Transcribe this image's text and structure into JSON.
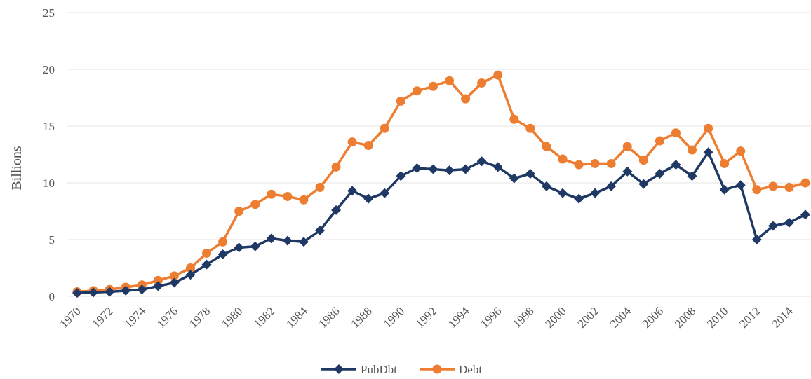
{
  "chart_data": {
    "type": "line",
    "y_label": "Billions",
    "categories": [
      "1970",
      null,
      "1972",
      null,
      "1974",
      null,
      "1976",
      null,
      "1978",
      null,
      "1980",
      null,
      "1982",
      null,
      "1984",
      null,
      "1986",
      null,
      "1988",
      null,
      "1990",
      null,
      "1992",
      null,
      "1994",
      null,
      "1996",
      null,
      "1998",
      null,
      "2000",
      null,
      "2002",
      null,
      "2004",
      null,
      "2006",
      null,
      "2008",
      null,
      "2010",
      null,
      "2012",
      null,
      "2014",
      null
    ],
    "series": [
      {
        "name": "PubDbt",
        "color": "#1f3864",
        "marker": "diamond",
        "values": [
          0.3,
          0.35,
          0.4,
          0.5,
          0.6,
          0.9,
          1.2,
          1.9,
          2.8,
          3.7,
          4.3,
          4.4,
          5.1,
          4.9,
          4.8,
          5.8,
          7.6,
          9.3,
          8.6,
          9.1,
          10.6,
          11.3,
          11.2,
          11.1,
          11.2,
          11.9,
          11.4,
          10.4,
          10.8,
          9.7,
          9.1,
          8.6,
          9.1,
          9.7,
          11.0,
          9.9,
          10.8,
          11.6,
          10.6,
          12.7,
          9.4,
          9.8,
          5.0,
          6.2,
          6.5,
          7.2
        ]
      },
      {
        "name": "Debt",
        "color": "#ed7d31",
        "marker": "circle",
        "values": [
          0.4,
          0.5,
          0.6,
          0.8,
          1.0,
          1.4,
          1.8,
          2.5,
          3.8,
          4.8,
          7.5,
          8.1,
          9.0,
          8.8,
          8.5,
          9.6,
          11.4,
          13.6,
          13.3,
          14.8,
          17.2,
          18.1,
          18.5,
          19.0,
          17.4,
          18.8,
          19.5,
          15.6,
          14.8,
          13.2,
          12.1,
          11.6,
          11.7,
          11.7,
          13.2,
          12.0,
          13.7,
          14.4,
          12.9,
          14.8,
          11.7,
          12.8,
          9.4,
          9.7,
          9.6,
          10.0
        ]
      }
    ],
    "ylim": [
      0,
      25
    ],
    "yticks": [
      0,
      5,
      10,
      15,
      20,
      25
    ],
    "grid": true,
    "legend": "bottom"
  }
}
